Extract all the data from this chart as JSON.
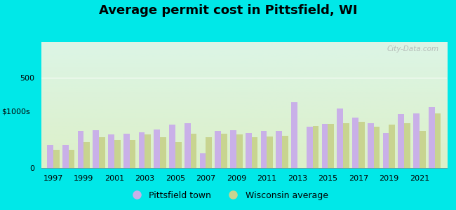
{
  "title": "Average permit cost in Pittsfield, WI",
  "ylabel": "$1000s",
  "years": [
    1997,
    1998,
    1999,
    2000,
    2001,
    2002,
    2003,
    2004,
    2005,
    2006,
    2007,
    2008,
    2009,
    2010,
    2011,
    2012,
    2013,
    2014,
    2015,
    2016,
    2017,
    2018,
    2019,
    2020,
    2021,
    2022
  ],
  "pittsfield": [
    130,
    130,
    205,
    210,
    185,
    190,
    200,
    215,
    240,
    250,
    80,
    205,
    210,
    195,
    205,
    205,
    365,
    230,
    245,
    330,
    280,
    250,
    195,
    300,
    305,
    340
  ],
  "wisconsin": [
    100,
    100,
    145,
    170,
    155,
    155,
    185,
    170,
    145,
    190,
    170,
    190,
    185,
    170,
    175,
    180,
    0,
    235,
    245,
    250,
    255,
    230,
    240,
    250,
    205,
    305
  ],
  "pittsfield_color": "#c9b0e8",
  "wisconsin_color": "#c8d490",
  "ylim": [
    0,
    700
  ],
  "yticks": [
    0,
    500
  ],
  "background_outer": "#00e8e8",
  "background_inner": "#eaf8ee",
  "bar_width": 0.4,
  "title_fontsize": 13,
  "axis_label_fontsize": 8,
  "tick_fontsize": 8,
  "legend_label1": "Pittsfield town",
  "legend_label2": "Wisconsin average",
  "xtick_years": [
    1997,
    1999,
    2001,
    2003,
    2005,
    2007,
    2009,
    2011,
    2013,
    2015,
    2017,
    2019,
    2021
  ]
}
